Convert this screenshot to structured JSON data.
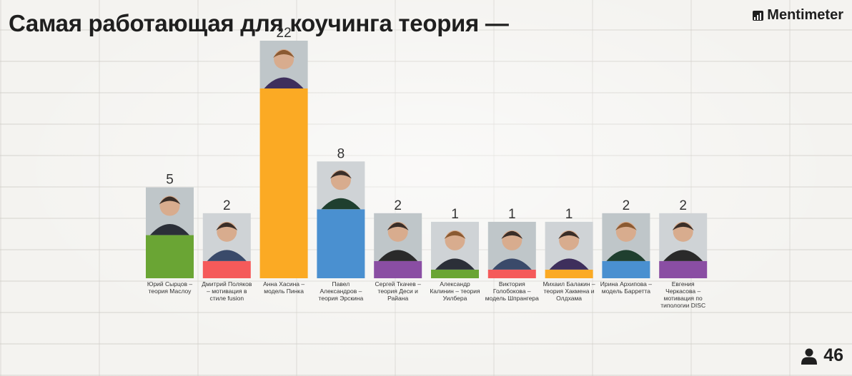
{
  "header": {
    "title": "Самая работающая для коучинга теория —",
    "brand": "Mentimeter"
  },
  "footer": {
    "participants_count": "46"
  },
  "chart_data": {
    "type": "bar",
    "title": "Самая работающая для коучинга теория —",
    "xlabel": "",
    "ylabel": "",
    "ylim": [
      0,
      22
    ],
    "grid": false,
    "categories": [
      "Юрий Сырцов – теория Маслоу",
      "Дмитрий Поляков – мотивация в стиле fusion",
      "Анна Хасина – модель Пинка",
      "Павел Александров – теория Эрскина",
      "Сергей Ткачев – теория Деси и Райана",
      "Александр Калинин – теория Уилбера",
      "Виктория Голобокова – модель Шпрангера",
      "Михаил Балакин – теория Хакмена и Олдхама",
      "Ирина Архипова – модель Барретта",
      "Евгения Черкасова – мотивация по типологии DISC"
    ],
    "values": [
      5,
      2,
      22,
      8,
      2,
      1,
      1,
      1,
      2,
      2
    ],
    "colors": [
      "#6aa534",
      "#f55a5a",
      "#fbaa24",
      "#4a90d0",
      "#8a4ea3",
      "#6aa534",
      "#f55a5a",
      "#fbaa24",
      "#4a90d0",
      "#8a4ea3"
    ]
  }
}
